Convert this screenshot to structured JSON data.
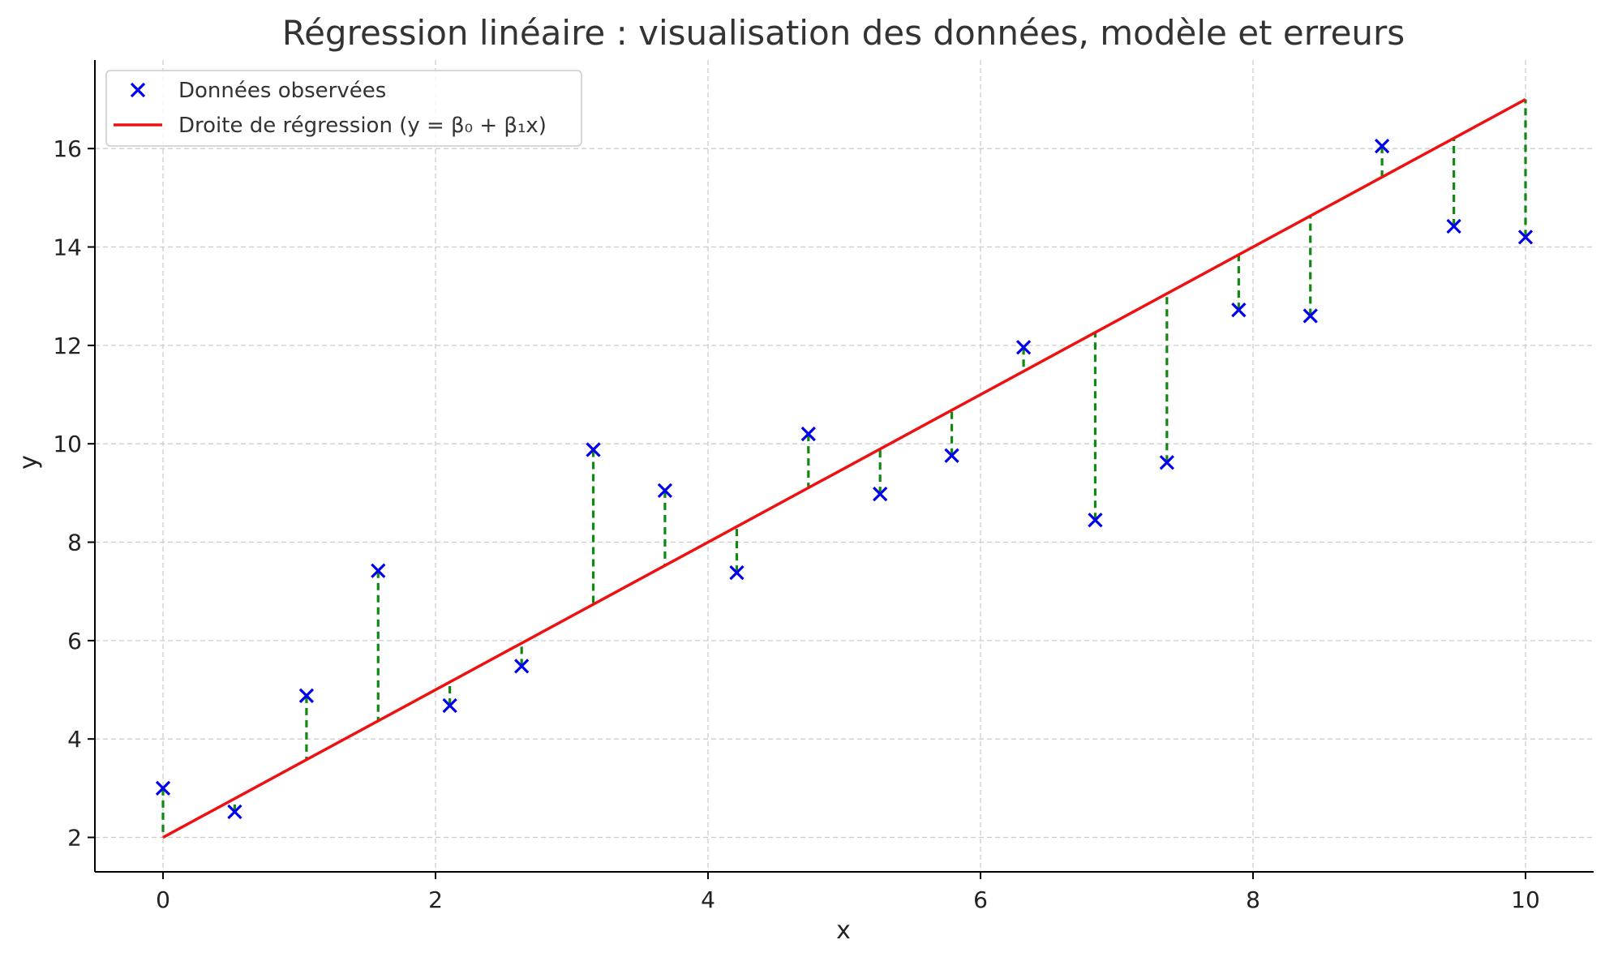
{
  "chart_data": {
    "type": "scatter",
    "title": "Régression linéaire : visualisation des données, modèle et erreurs",
    "xlabel": "x",
    "ylabel": "y",
    "xlim": [
      -0.5,
      10.5
    ],
    "ylim": [
      1.3,
      17.8
    ],
    "xticks": [
      "0",
      "2",
      "4",
      "6",
      "8",
      "10"
    ],
    "yticks": [
      "2",
      "4",
      "6",
      "8",
      "10",
      "12",
      "14",
      "16"
    ],
    "grid": true,
    "legend_position": "top-left",
    "series": [
      {
        "name": "Données observées",
        "kind": "scatter",
        "marker": "x",
        "color": "#0000ee",
        "x": [
          0,
          0.526,
          1.053,
          1.579,
          2.105,
          2.632,
          3.158,
          3.684,
          4.211,
          4.737,
          5.263,
          5.789,
          6.316,
          6.842,
          7.368,
          7.895,
          8.421,
          8.947,
          9.474,
          10
        ],
        "y": [
          3.0,
          2.52,
          4.88,
          7.42,
          4.68,
          5.48,
          9.88,
          9.05,
          7.38,
          10.2,
          8.98,
          9.76,
          11.96,
          8.45,
          9.62,
          12.72,
          12.6,
          16.05,
          14.42,
          14.2
        ]
      },
      {
        "name": "Droite de régression (y = β₀ + β₁x)",
        "kind": "line",
        "color": "#ee1111",
        "intercept": 2,
        "slope": 1.5,
        "x": [
          0,
          10
        ],
        "y": [
          2,
          17
        ]
      }
    ],
    "residuals": {
      "color": "#118811",
      "style": "dashed"
    }
  }
}
